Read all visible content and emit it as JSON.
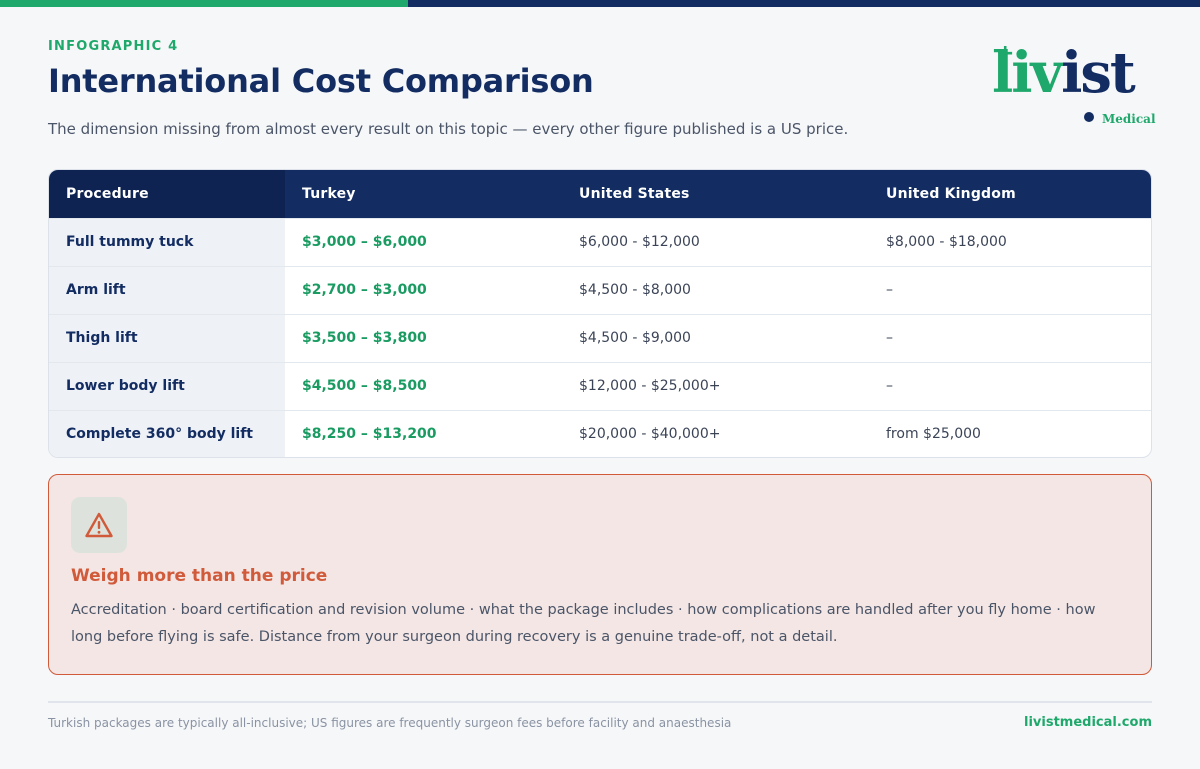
{
  "header": {
    "eyebrow": "INFOGRAPHIC 4",
    "title": "International Cost Comparison",
    "subtitle": "The dimension missing from almost every result on this topic — every other figure published is a US price."
  },
  "logo": {
    "wordmark_green": "liv",
    "wordmark_navy": "ist",
    "tagline": "Medical"
  },
  "table": {
    "columns": [
      "Procedure",
      "Turkey",
      "United States",
      "United Kingdom"
    ],
    "rows": [
      {
        "procedure": "Full tummy tuck",
        "turkey": "$3,000 – $6,000",
        "us": "$6,000 - $12,000",
        "uk": "$8,000 - $18,000"
      },
      {
        "procedure": "Arm lift",
        "turkey": "$2,700 – $3,000",
        "us": "$4,500 - $8,000",
        "uk": "–"
      },
      {
        "procedure": "Thigh lift",
        "turkey": "$3,500 – $3,800",
        "us": "$4,500 - $9,000",
        "uk": "–"
      },
      {
        "procedure": "Lower body lift",
        "turkey": "$4,500 – $8,500",
        "us": "$12,000 - $25,000+",
        "uk": "–"
      },
      {
        "procedure": "Complete 360° body lift",
        "turkey": "$8,250 – $13,200",
        "us": "$20,000 - $40,000+",
        "uk": "from $25,000"
      }
    ]
  },
  "callout": {
    "icon": "warning-triangle-icon",
    "heading": "Weigh more than the price",
    "body": "Accreditation · board certification and revision volume · what the package includes · how complications are handled after you fly home · how long before flying is safe. Distance from your surgeon during recovery is a genuine trade-off, not a detail."
  },
  "footer": {
    "note": "Turkish packages are typically all-inclusive; US figures are frequently surgeon fees before facility and anaesthesia",
    "url": "livistmedical.com"
  },
  "colors": {
    "brand_green": "#1fa86b",
    "brand_navy": "#132d62",
    "warning_orange": "#d05a3a"
  }
}
